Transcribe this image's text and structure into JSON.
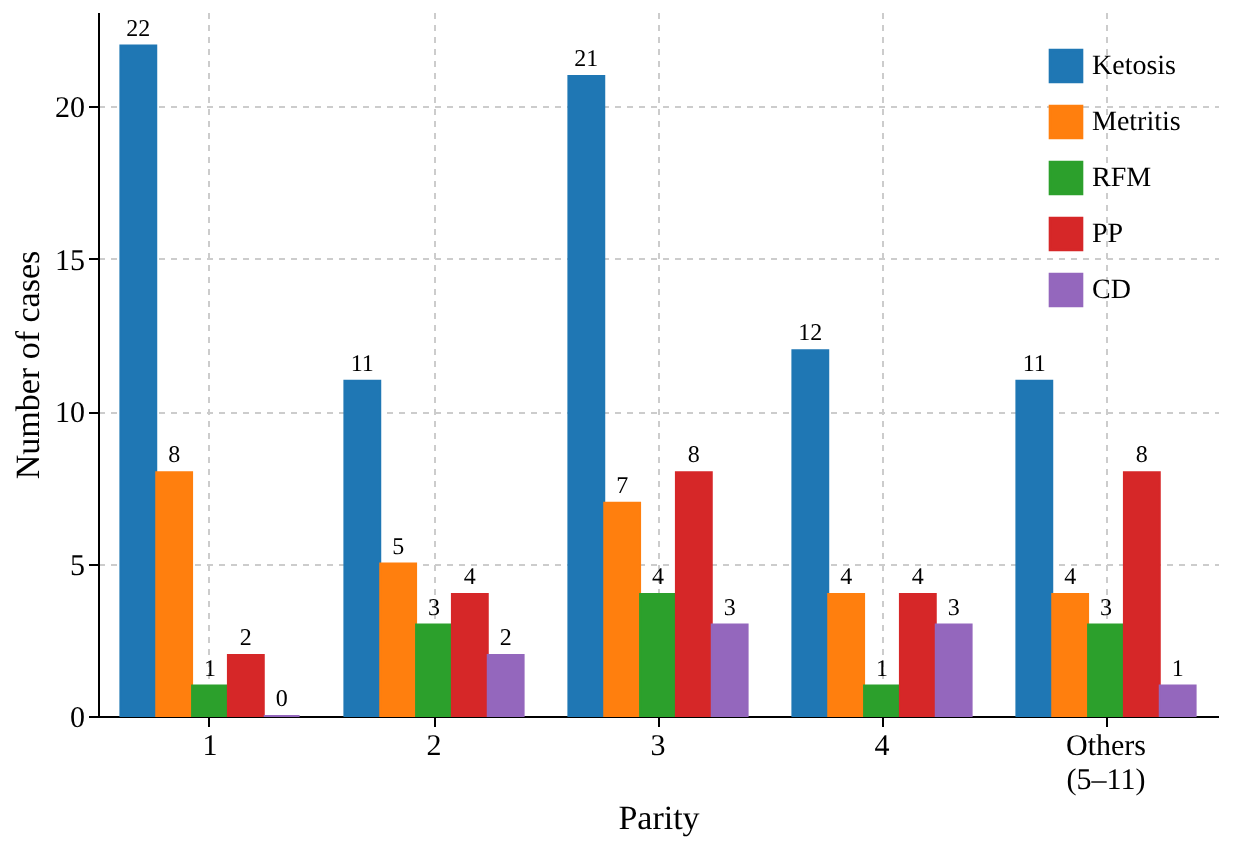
{
  "chart_data": {
    "type": "bar",
    "xlabel": "Parity",
    "ylabel": "Number of cases",
    "categories": [
      "1",
      "2",
      "3",
      "4",
      "Others (5–11)"
    ],
    "series": [
      {
        "name": "Ketosis",
        "color": "#1f77b4",
        "values": [
          22,
          11,
          21,
          12,
          11
        ]
      },
      {
        "name": "Metritis",
        "color": "#ff7f0e",
        "values": [
          8,
          5,
          7,
          4,
          4
        ]
      },
      {
        "name": "RFM",
        "color": "#2ca02c",
        "values": [
          1,
          3,
          4,
          1,
          3
        ]
      },
      {
        "name": "PP",
        "color": "#d62728",
        "values": [
          2,
          4,
          8,
          4,
          8
        ]
      },
      {
        "name": "CD",
        "color": "#9467bd",
        "values": [
          0,
          2,
          3,
          3,
          1
        ]
      }
    ],
    "ylim": [
      0,
      23.1
    ],
    "yticks": [
      0,
      5,
      10,
      15,
      20
    ],
    "grid": true,
    "legend": "top right",
    "data_labels": true
  }
}
